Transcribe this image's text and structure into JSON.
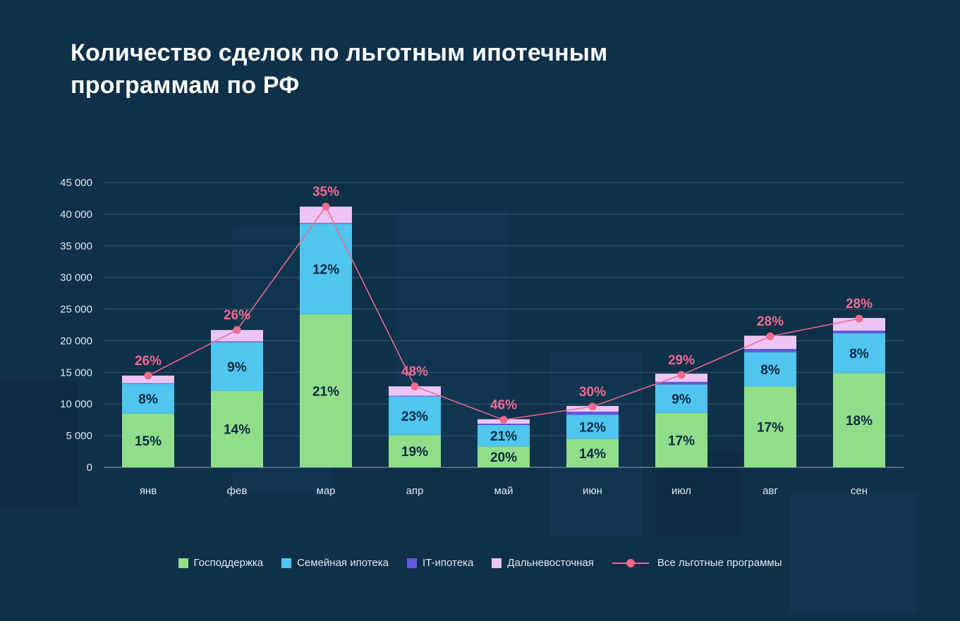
{
  "title": {
    "line1": "Количество сделок по льготным ипотечным",
    "line2": "программам по РФ"
  },
  "colors": {
    "background": "#0f3049",
    "gosp": "#90dd8a",
    "family": "#4fc5ef",
    "it": "#6356e0",
    "far_east": "#eec4f6",
    "total_line": "#ef6b8e",
    "inner_label": "#0d2a3f",
    "axis_text": "#dfe7ee",
    "grid": "#2f5873"
  },
  "legend": [
    {
      "label": "Господдержка",
      "color": "#90dd8a",
      "kind": "box"
    },
    {
      "label": "Семейная ипотека",
      "color": "#4fc5ef",
      "kind": "box"
    },
    {
      "label": "IT-ипотека",
      "color": "#6356e0",
      "kind": "box"
    },
    {
      "label": "Дальневосточная",
      "color": "#eec4f6",
      "kind": "box"
    },
    {
      "label": "Все льготные программы",
      "color": "#ef6b8e",
      "kind": "line"
    }
  ],
  "chart_data": {
    "type": "bar",
    "stacked": true,
    "categories": [
      "янв",
      "фев",
      "мар",
      "апр",
      "май",
      "июн",
      "июл",
      "авг",
      "сен"
    ],
    "ylim": [
      0,
      45000
    ],
    "yticks": [
      0,
      5000,
      10000,
      15000,
      20000,
      25000,
      30000,
      35000,
      40000,
      45000
    ],
    "ytick_labels": [
      "0",
      "5 000",
      "10 000",
      "15 000",
      "20 000",
      "25 000",
      "30 000",
      "35 000",
      "40 000",
      "45 000"
    ],
    "grid": true,
    "legend_position": "bottom",
    "series": [
      {
        "name": "Господдержка",
        "values": [
          8500,
          12100,
          24200,
          5100,
          3300,
          4500,
          8600,
          12800,
          14900
        ],
        "labels": [
          "15%",
          "14%",
          "21%",
          "19%",
          "20%",
          "14%",
          "17%",
          "17%",
          "18%"
        ]
      },
      {
        "name": "Семейная ипотека",
        "values": [
          4700,
          7700,
          14300,
          6100,
          3400,
          3800,
          4500,
          5400,
          6300
        ],
        "labels": [
          "8%",
          "9%",
          "12%",
          "23%",
          "21%",
          "12%",
          "9%",
          "8%",
          "8%"
        ]
      },
      {
        "name": "IT-ипотека",
        "values": [
          100,
          100,
          100,
          100,
          200,
          500,
          400,
          500,
          400
        ],
        "labels": []
      },
      {
        "name": "Дальневосточная",
        "values": [
          1200,
          1800,
          2600,
          1500,
          700,
          900,
          1300,
          2100,
          2000
        ],
        "labels": []
      }
    ],
    "line": {
      "name": "Все льготные программы",
      "values": [
        14500,
        21700,
        41200,
        12800,
        7500,
        9600,
        14600,
        20700,
        23500
      ],
      "labels": [
        "26%",
        "26%",
        "35%",
        "48%",
        "46%",
        "30%",
        "29%",
        "28%",
        "28%"
      ]
    }
  }
}
